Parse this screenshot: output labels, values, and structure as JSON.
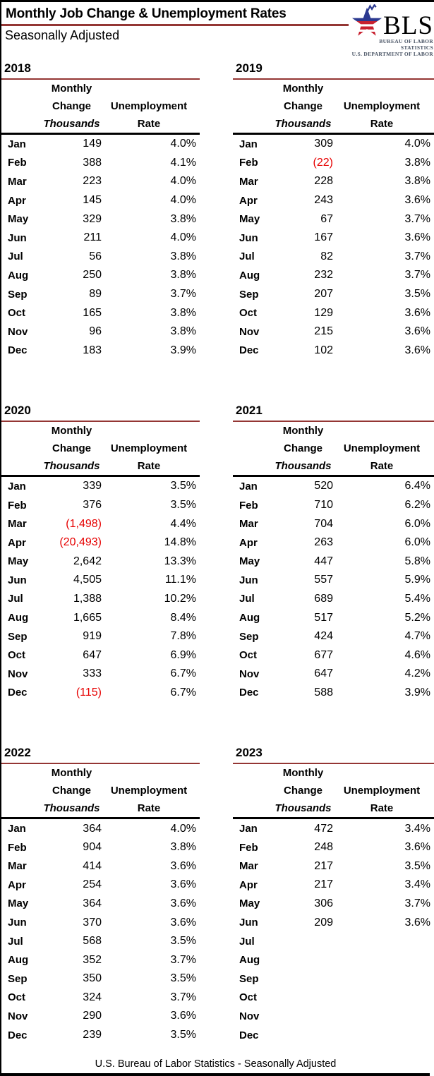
{
  "header": {
    "title": "Monthly Job Change & Unemployment Rates",
    "subtitle": "Seasonally Adjusted",
    "logo": {
      "acronym": "BLS",
      "line1": "BUREAU OF LABOR STATISTICS",
      "line2": "U.S. DEPARTMENT OF LABOR"
    }
  },
  "columns": {
    "change_line1": "Monthly",
    "change_line2": "Change",
    "change_line3": "Thousands",
    "rate_line1": "Unemployment",
    "rate_line2": "Rate"
  },
  "colors": {
    "rule_dark_red": "#943634",
    "negative_red": "#e60000",
    "logo_navy": "#2b3990",
    "logo_red": "#c8202f",
    "border_black": "#000000"
  },
  "footer": "U.S. Bureau of Labor Statistics - Seasonally Adjusted",
  "tables": [
    {
      "year": "2018",
      "rows": [
        {
          "month": "Jan",
          "change": "149",
          "rate": "4.0%"
        },
        {
          "month": "Feb",
          "change": "388",
          "rate": "4.1%"
        },
        {
          "month": "Mar",
          "change": "223",
          "rate": "4.0%"
        },
        {
          "month": "Apr",
          "change": "145",
          "rate": "4.0%"
        },
        {
          "month": "May",
          "change": "329",
          "rate": "3.8%"
        },
        {
          "month": "Jun",
          "change": "211",
          "rate": "4.0%"
        },
        {
          "month": "Jul",
          "change": "56",
          "rate": "3.8%"
        },
        {
          "month": "Aug",
          "change": "250",
          "rate": "3.8%"
        },
        {
          "month": "Sep",
          "change": "89",
          "rate": "3.7%"
        },
        {
          "month": "Oct",
          "change": "165",
          "rate": "3.8%"
        },
        {
          "month": "Nov",
          "change": "96",
          "rate": "3.8%"
        },
        {
          "month": "Dec",
          "change": "183",
          "rate": "3.9%"
        }
      ]
    },
    {
      "year": "2019",
      "rows": [
        {
          "month": "Jan",
          "change": "309",
          "rate": "4.0%"
        },
        {
          "month": "Feb",
          "change": "(22)",
          "rate": "3.8%",
          "negative": true
        },
        {
          "month": "Mar",
          "change": "228",
          "rate": "3.8%"
        },
        {
          "month": "Apr",
          "change": "243",
          "rate": "3.6%"
        },
        {
          "month": "May",
          "change": "67",
          "rate": "3.7%"
        },
        {
          "month": "Jun",
          "change": "167",
          "rate": "3.6%"
        },
        {
          "month": "Jul",
          "change": "82",
          "rate": "3.7%"
        },
        {
          "month": "Aug",
          "change": "232",
          "rate": "3.7%"
        },
        {
          "month": "Sep",
          "change": "207",
          "rate": "3.5%"
        },
        {
          "month": "Oct",
          "change": "129",
          "rate": "3.6%"
        },
        {
          "month": "Nov",
          "change": "215",
          "rate": "3.6%"
        },
        {
          "month": "Dec",
          "change": "102",
          "rate": "3.6%"
        }
      ]
    },
    {
      "year": "2020",
      "rows": [
        {
          "month": "Jan",
          "change": "339",
          "rate": "3.5%"
        },
        {
          "month": "Feb",
          "change": "376",
          "rate": "3.5%"
        },
        {
          "month": "Mar",
          "change": "(1,498)",
          "rate": "4.4%",
          "negative": true
        },
        {
          "month": "Apr",
          "change": "(20,493)",
          "rate": "14.8%",
          "negative": true
        },
        {
          "month": "May",
          "change": "2,642",
          "rate": "13.3%"
        },
        {
          "month": "Jun",
          "change": "4,505",
          "rate": "11.1%"
        },
        {
          "month": "Jul",
          "change": "1,388",
          "rate": "10.2%"
        },
        {
          "month": "Aug",
          "change": "1,665",
          "rate": "8.4%"
        },
        {
          "month": "Sep",
          "change": "919",
          "rate": "7.8%"
        },
        {
          "month": "Oct",
          "change": "647",
          "rate": "6.9%"
        },
        {
          "month": "Nov",
          "change": "333",
          "rate": "6.7%"
        },
        {
          "month": "Dec",
          "change": "(115)",
          "rate": "6.7%",
          "negative": true
        }
      ]
    },
    {
      "year": "2021",
      "rows": [
        {
          "month": "Jan",
          "change": "520",
          "rate": "6.4%"
        },
        {
          "month": "Feb",
          "change": "710",
          "rate": "6.2%"
        },
        {
          "month": "Mar",
          "change": "704",
          "rate": "6.0%"
        },
        {
          "month": "Apr",
          "change": "263",
          "rate": "6.0%"
        },
        {
          "month": "May",
          "change": "447",
          "rate": "5.8%"
        },
        {
          "month": "Jun",
          "change": "557",
          "rate": "5.9%"
        },
        {
          "month": "Jul",
          "change": "689",
          "rate": "5.4%"
        },
        {
          "month": "Aug",
          "change": "517",
          "rate": "5.2%"
        },
        {
          "month": "Sep",
          "change": "424",
          "rate": "4.7%"
        },
        {
          "month": "Oct",
          "change": "677",
          "rate": "4.6%"
        },
        {
          "month": "Nov",
          "change": "647",
          "rate": "4.2%"
        },
        {
          "month": "Dec",
          "change": "588",
          "rate": "3.9%"
        }
      ]
    },
    {
      "year": "2022",
      "rows": [
        {
          "month": "Jan",
          "change": "364",
          "rate": "4.0%"
        },
        {
          "month": "Feb",
          "change": "904",
          "rate": "3.8%"
        },
        {
          "month": "Mar",
          "change": "414",
          "rate": "3.6%"
        },
        {
          "month": "Apr",
          "change": "254",
          "rate": "3.6%"
        },
        {
          "month": "May",
          "change": "364",
          "rate": "3.6%"
        },
        {
          "month": "Jun",
          "change": "370",
          "rate": "3.6%"
        },
        {
          "month": "Jul",
          "change": "568",
          "rate": "3.5%"
        },
        {
          "month": "Aug",
          "change": "352",
          "rate": "3.7%"
        },
        {
          "month": "Sep",
          "change": "350",
          "rate": "3.5%"
        },
        {
          "month": "Oct",
          "change": "324",
          "rate": "3.7%"
        },
        {
          "month": "Nov",
          "change": "290",
          "rate": "3.6%"
        },
        {
          "month": "Dec",
          "change": "239",
          "rate": "3.5%"
        }
      ]
    },
    {
      "year": "2023",
      "rows": [
        {
          "month": "Jan",
          "change": "472",
          "rate": "3.4%"
        },
        {
          "month": "Feb",
          "change": "248",
          "rate": "3.6%"
        },
        {
          "month": "Mar",
          "change": "217",
          "rate": "3.5%"
        },
        {
          "month": "Apr",
          "change": "217",
          "rate": "3.4%"
        },
        {
          "month": "May",
          "change": "306",
          "rate": "3.7%"
        },
        {
          "month": "Jun",
          "change": "209",
          "rate": "3.6%"
        },
        {
          "month": "Jul",
          "change": "",
          "rate": ""
        },
        {
          "month": "Aug",
          "change": "",
          "rate": ""
        },
        {
          "month": "Sep",
          "change": "",
          "rate": ""
        },
        {
          "month": "Oct",
          "change": "",
          "rate": ""
        },
        {
          "month": "Nov",
          "change": "",
          "rate": ""
        },
        {
          "month": "Dec",
          "change": "",
          "rate": ""
        }
      ]
    }
  ]
}
